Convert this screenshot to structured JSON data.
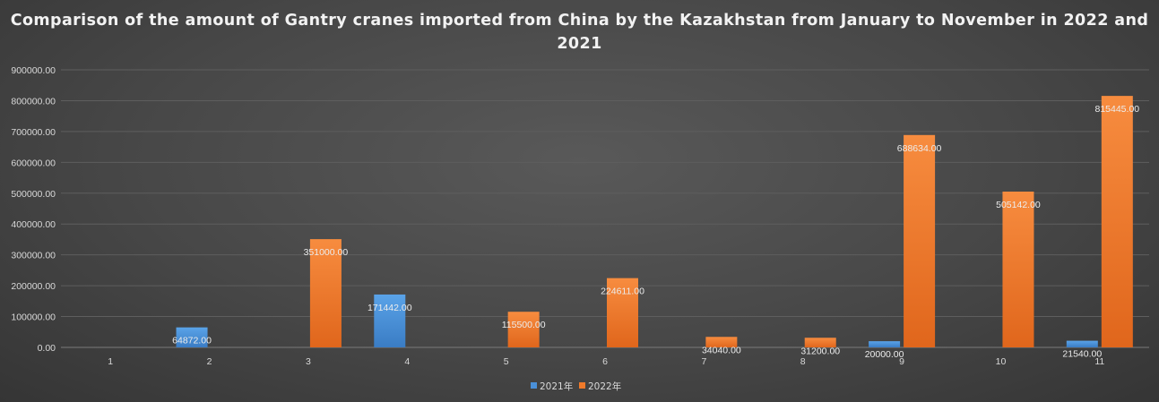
{
  "chart_data": {
    "type": "bar",
    "title": "Comparison of the amount of Gantry cranes imported from China by the Kazakhstan from January to November in 2022 and 2021",
    "categories": [
      "1",
      "2",
      "3",
      "4",
      "5",
      "6",
      "7",
      "8",
      "9",
      "10",
      "11"
    ],
    "series": [
      {
        "name": "2021年",
        "color": "#4a90d9",
        "values": [
          0,
          64872,
          0,
          171442,
          0,
          0,
          0,
          0,
          20000,
          0,
          21540
        ],
        "labels": [
          "",
          "64872.00",
          "",
          "171442.00",
          "",
          "",
          "",
          "",
          "20000.00",
          "",
          "21540.00"
        ]
      },
      {
        "name": "2022年",
        "color": "#f07a2a",
        "values": [
          0,
          0,
          351000,
          0,
          115500,
          224611,
          34040,
          31200,
          688634,
          505142,
          815445
        ],
        "labels": [
          "",
          "",
          "351000.00",
          "",
          "115500.00",
          "224611.00",
          "34040.00",
          "31200.00",
          "688634.00",
          "505142.00",
          "815445.00"
        ]
      }
    ],
    "yticks": [
      "0.00",
      "100000.00",
      "200000.00",
      "300000.00",
      "400000.00",
      "500000.00",
      "600000.00",
      "700000.00",
      "800000.00",
      "900000.00"
    ],
    "ylim": [
      0,
      900000
    ],
    "grid": true,
    "legend_position": "bottom"
  }
}
